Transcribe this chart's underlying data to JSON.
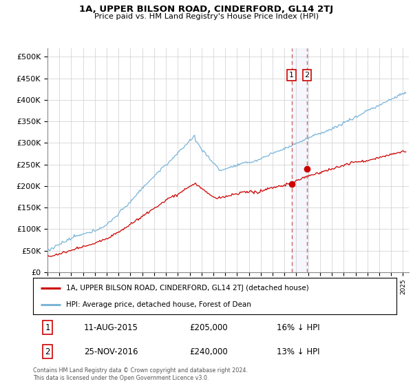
{
  "title": "1A, UPPER BILSON ROAD, CINDERFORD, GL14 2TJ",
  "subtitle": "Price paid vs. HM Land Registry's House Price Index (HPI)",
  "ylabel_ticks": [
    "£0",
    "£50K",
    "£100K",
    "£150K",
    "£200K",
    "£250K",
    "£300K",
    "£350K",
    "£400K",
    "£450K",
    "£500K"
  ],
  "ytick_values": [
    0,
    50000,
    100000,
    150000,
    200000,
    250000,
    300000,
    350000,
    400000,
    450000,
    500000
  ],
  "ylim": [
    0,
    520000
  ],
  "xlim_start": 1995.0,
  "xlim_end": 2025.5,
  "transaction1": {
    "date": 2015.6,
    "price": 205000,
    "label": "1",
    "text": "11-AUG-2015",
    "amount": "£205,000",
    "pct": "16% ↓ HPI"
  },
  "transaction2": {
    "date": 2016.9,
    "price": 240000,
    "label": "2",
    "text": "25-NOV-2016",
    "amount": "£240,000",
    "pct": "13% ↓ HPI"
  },
  "legend_line1": "1A, UPPER BILSON ROAD, CINDERFORD, GL14 2TJ (detached house)",
  "legend_line2": "HPI: Average price, detached house, Forest of Dean",
  "footnote": "Contains HM Land Registry data © Crown copyright and database right 2024.\nThis data is licensed under the Open Government Licence v3.0.",
  "hpi_color": "#7ab4d8",
  "price_color": "#cc0000",
  "vline_color": "#cc6666",
  "highlight_color": "#ddeeff",
  "grid_color": "#cccccc",
  "background_color": "#ffffff",
  "box1_color": "#cc0000",
  "box2_color": "#cc0000"
}
